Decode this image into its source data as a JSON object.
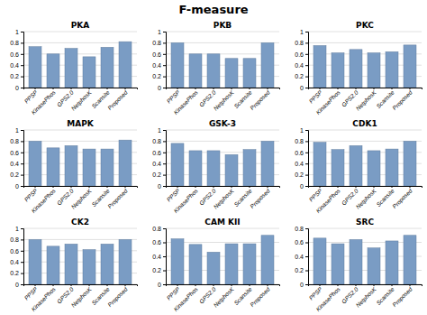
{
  "title": "F-measure",
  "chart_data": [
    {
      "type": "bar",
      "title": "PKA",
      "categories": [
        "PPSP",
        "KinasePhos",
        "GPS2.0",
        "NetphosK",
        "Scansite",
        "Proposed"
      ],
      "values": [
        0.73,
        0.6,
        0.7,
        0.55,
        0.72,
        0.82
      ],
      "color": "#7a9cc4",
      "ylim": [
        0,
        1
      ],
      "yticks": [
        0,
        0.2,
        0.4,
        0.6,
        0.8,
        1
      ],
      "grid": true
    },
    {
      "type": "bar",
      "title": "PKB",
      "categories": [
        "PPSP",
        "KinasePhos",
        "GPS2.0",
        "NetphosK",
        "Scansite",
        "Proposed"
      ],
      "values": [
        0.8,
        0.6,
        0.6,
        0.52,
        0.52,
        0.8
      ],
      "color": "#7a9cc4",
      "ylim": [
        0,
        1
      ],
      "yticks": [
        0,
        0.2,
        0.4,
        0.6,
        0.8,
        1
      ],
      "grid": true
    },
    {
      "type": "bar",
      "title": "PKC",
      "categories": [
        "PPSP",
        "KinasePhos",
        "GPS2.0",
        "NetphosK",
        "Scansite",
        "Proposed"
      ],
      "values": [
        0.75,
        0.62,
        0.68,
        0.62,
        0.64,
        0.76
      ],
      "color": "#7a9cc4",
      "ylim": [
        0,
        1
      ],
      "yticks": [
        0,
        0.2,
        0.4,
        0.6,
        0.8,
        1
      ],
      "grid": true
    },
    {
      "type": "bar",
      "title": "MAPK",
      "categories": [
        "PPSP",
        "KinasePhos",
        "GPS2.0",
        "NetphosK",
        "Scansite",
        "Proposed"
      ],
      "values": [
        0.8,
        0.68,
        0.72,
        0.66,
        0.66,
        0.82
      ],
      "color": "#7a9cc4",
      "ylim": [
        0,
        1
      ],
      "yticks": [
        0,
        0.2,
        0.4,
        0.6,
        0.8,
        1
      ],
      "grid": true
    },
    {
      "type": "bar",
      "title": "GSK-3",
      "categories": [
        "PPSP",
        "KinasePhos",
        "GPS2.0",
        "NetphosK",
        "Scansite",
        "Proposed"
      ],
      "values": [
        0.76,
        0.63,
        0.63,
        0.56,
        0.65,
        0.8
      ],
      "color": "#7a9cc4",
      "ylim": [
        0,
        1
      ],
      "yticks": [
        0,
        0.2,
        0.4,
        0.6,
        0.8,
        1
      ],
      "grid": true
    },
    {
      "type": "bar",
      "title": "CDK1",
      "categories": [
        "PPSP",
        "KinasePhos",
        "GPS2.0",
        "NetphosK",
        "Scansite",
        "Proposed"
      ],
      "values": [
        0.78,
        0.65,
        0.72,
        0.63,
        0.66,
        0.8
      ],
      "color": "#7a9cc4",
      "ylim": [
        0,
        1
      ],
      "yticks": [
        0,
        0.2,
        0.4,
        0.6,
        0.8,
        1
      ],
      "grid": true
    },
    {
      "type": "bar",
      "title": "CK2",
      "categories": [
        "PPSP",
        "KinasePhos",
        "GPS2.0",
        "NetphosK",
        "Scansite",
        "Proposed"
      ],
      "values": [
        0.8,
        0.68,
        0.72,
        0.62,
        0.72,
        0.8
      ],
      "color": "#7a9cc4",
      "ylim": [
        0,
        1
      ],
      "yticks": [
        0,
        0.2,
        0.4,
        0.6,
        0.8,
        1
      ],
      "grid": true
    },
    {
      "type": "bar",
      "title": "CAM KII",
      "categories": [
        "PPSP",
        "KinasePhos",
        "GPS2.0",
        "NetphosK",
        "Scansite",
        "Proposed"
      ],
      "values": [
        0.65,
        0.57,
        0.46,
        0.58,
        0.58,
        0.7
      ],
      "color": "#7a9cc4",
      "ylim": [
        0,
        0.8
      ],
      "yticks": [
        0,
        0.2,
        0.4,
        0.6,
        0.8
      ],
      "grid": true
    },
    {
      "type": "bar",
      "title": "SRC",
      "categories": [
        "PPSP",
        "KinasePhos",
        "GPS2.0",
        "NetphosK",
        "Scansite",
        "Proposed"
      ],
      "values": [
        0.66,
        0.58,
        0.64,
        0.52,
        0.62,
        0.7
      ],
      "color": "#7a9cc4",
      "ylim": [
        0,
        0.8
      ],
      "yticks": [
        0,
        0.2,
        0.4,
        0.6,
        0.8
      ],
      "grid": true
    }
  ]
}
